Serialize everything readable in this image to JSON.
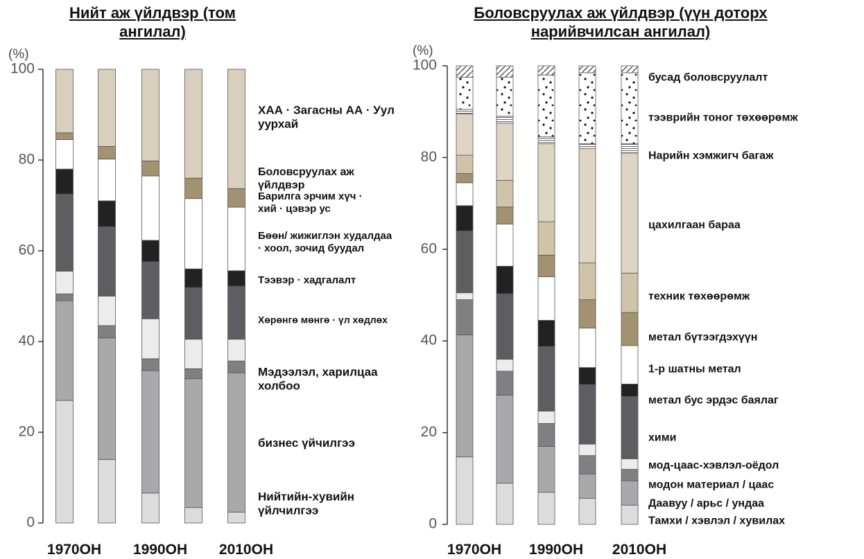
{
  "chart_data": [
    {
      "type": "bar",
      "stacked": true,
      "title": "Нийт аж үйлдвэр (том ангилал)",
      "ylabel": "(%)",
      "categories": [
        "1970ОН",
        null,
        "1990ОН",
        null,
        "2010ОН"
      ],
      "ylim": [
        0,
        100
      ],
      "yticks": [
        0,
        20,
        40,
        60,
        80,
        100
      ],
      "series": [
        {
          "name": "ХАА · Загасны АА · Уул уурхай",
          "color": "#dcdcdc",
          "values": [
            27,
            14,
            6.6,
            3.4,
            2.4
          ]
        },
        {
          "name": "Боловсруулах аж үйлдвэр",
          "color": "#a9a9ab",
          "values": [
            22,
            26.8,
            27,
            28.4,
            30.7
          ]
        },
        {
          "name": "Барилга эрчим хүч · хий · цэвэр ус",
          "color": "#808084",
          "values": [
            1.5,
            2.7,
            2.6,
            2.2,
            2.6
          ]
        },
        {
          "name": "Бөөн/ жижиглэн худалдаа · хоол, зочид буудал",
          "color": "#ececec",
          "values": [
            5,
            6.5,
            8.8,
            6.5,
            4.8
          ]
        },
        {
          "name": "Тээвэр · хадгалалт",
          "color": "#5d5d62",
          "values": [
            17,
            15.3,
            12.6,
            11.4,
            11.7
          ]
        },
        {
          "name": "Хөрөнгө мөнгө · үл хөдлөх",
          "color": "#222222",
          "values": [
            5.5,
            5.7,
            4.7,
            4.1,
            3.4
          ]
        },
        {
          "name": "Мэдээлэл, харилцаа холбоо",
          "color": "#ffffff",
          "values": [
            6.5,
            9.2,
            14.2,
            15.5,
            14
          ]
        },
        {
          "name": "бизнес үйчилгээ",
          "color": "#a39271",
          "values": [
            1.5,
            2.8,
            3.3,
            4.5,
            4.1
          ]
        },
        {
          "name": "Нийтийн-хувийн үйлчилгээ",
          "color": "#d9cfbd",
          "values": [
            14,
            17,
            20.2,
            24,
            26.3
          ]
        }
      ]
    },
    {
      "type": "bar",
      "stacked": true,
      "title": "Боловсруулах аж үйлдвэр (үүн доторх нарийвчилсан ангилал)",
      "ylabel": "(%)",
      "categories": [
        "1970ОН",
        null,
        "1990ОН",
        null,
        "2010ОН"
      ],
      "ylim": [
        0,
        100
      ],
      "yticks": [
        0,
        20,
        40,
        60,
        80,
        100
      ],
      "series": [
        {
          "name": "Тамхи / хэвлэл / хувилах",
          "color": "#dcdcdc",
          "values": [
            14.7,
            9,
            7,
            5.7,
            4.2
          ]
        },
        {
          "name": "Даавуу / арьс / ундаа",
          "color": "#a9a9ab",
          "values": [
            26.6,
            19.2,
            10,
            5.3,
            5.3
          ]
        },
        {
          "name": "модон материал / цаас",
          "color": "#808084",
          "values": [
            7.7,
            5.2,
            5,
            4,
            2.5
          ]
        },
        {
          "name": "мод-цаас-хэвлэл-оёдол",
          "color": "#ececec",
          "values": [
            1.5,
            2.6,
            2.7,
            2.5,
            2.3
          ]
        },
        {
          "name": "хими",
          "color": "#5d5d62",
          "values": [
            13.5,
            14.3,
            14.1,
            13,
            13.6
          ]
        },
        {
          "name": "метал бус эрдэс баялаг",
          "color": "#222222",
          "values": [
            5.5,
            6,
            5.7,
            3.7,
            2.7
          ]
        },
        {
          "name": "1-р шатны метал",
          "color": "#ffffff",
          "values": [
            5,
            9.2,
            9.5,
            8.6,
            8.4
          ]
        },
        {
          "name": "метал бүтээгдэхүүн",
          "color": "#a39271",
          "values": [
            2,
            3.7,
            4.7,
            6.2,
            7.2
          ]
        },
        {
          "name": "техник төхөөрөмж",
          "color": "#cfc3a9",
          "values": [
            4,
            5.8,
            7.3,
            8,
            8.6
          ]
        },
        {
          "name": "цахилгаан бараа",
          "color": "#ddd4c3",
          "values": [
            9,
            12.5,
            17,
            25,
            26.2
          ]
        },
        {
          "name": "Нарийн хэмжигч багаж",
          "color": "#ffffff",
          "pattern": "stripes",
          "values": [
            1,
            1.5,
            1.5,
            1,
            2
          ]
        },
        {
          "name": "тээврийн тоног төхөөрөмж",
          "color": "#ffffff",
          "pattern": "dots",
          "values": [
            7,
            8.5,
            13.5,
            15.5,
            15.5
          ]
        },
        {
          "name": "бусад боловсруулалт",
          "color": "#ffffff",
          "pattern": "hatch",
          "values": [
            2.5,
            2.5,
            2,
            1.5,
            1.5
          ]
        }
      ]
    }
  ]
}
